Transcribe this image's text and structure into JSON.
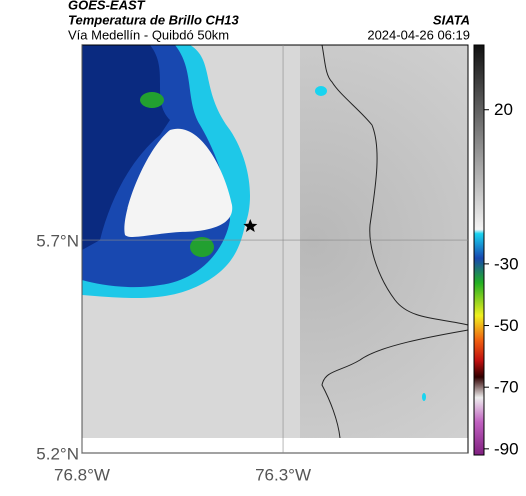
{
  "header": {
    "title": "GOES-EAST",
    "subtitle": "Temperatura de Brillo CH13",
    "route": "Vía Medellín - Quibdó 50km",
    "source": "SIATA",
    "datetime": "2024-04-26 06:19"
  },
  "map": {
    "ylim": [
      5.2,
      6.158
    ],
    "xlim": [
      -76.8,
      -75.84
    ],
    "yticks": [
      {
        "value": 5.7,
        "label": "5.7°N"
      },
      {
        "value": 5.2,
        "label": "5.2°N"
      }
    ],
    "xticks": [
      {
        "value": -76.8,
        "label": "76.8°W"
      },
      {
        "value": -76.3,
        "label": "76.3°W"
      }
    ]
  },
  "colorbar": {
    "lim": [
      -92,
      41
    ],
    "ticks": [
      20,
      -30,
      -50,
      -70,
      -90
    ]
  }
}
